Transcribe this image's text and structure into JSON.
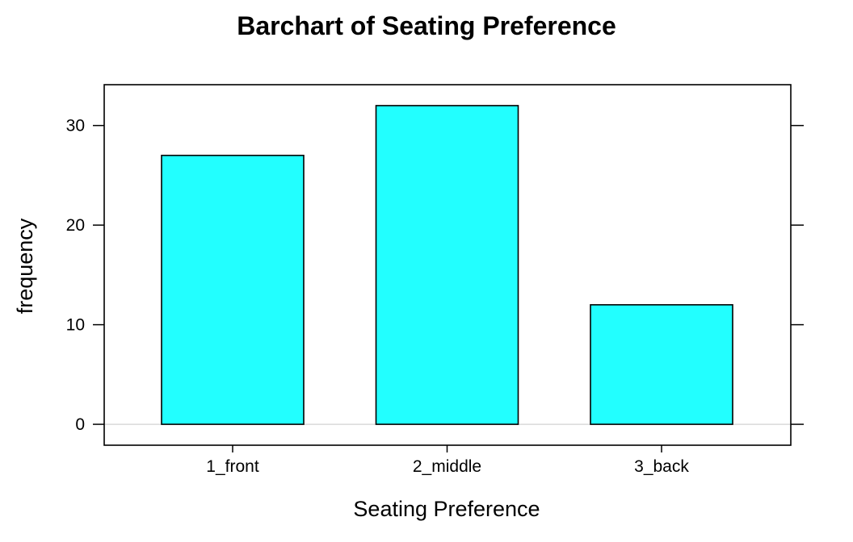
{
  "chart_data": {
    "type": "bar",
    "title": "Barchart of Seating Preference",
    "xlabel": "Seating Preference",
    "ylabel": "frequency",
    "categories": [
      "1_front",
      "2_middle",
      "3_back"
    ],
    "values": [
      27,
      32,
      12
    ],
    "ylim": [
      -2.1,
      34.1
    ],
    "yticks": [
      0,
      10,
      20,
      30
    ],
    "ytick_labels": [
      "0",
      "10",
      "20",
      "30"
    ],
    "grid": false,
    "legend": "none",
    "bar_color": "#22ffff",
    "bar_edge_color": "#000000",
    "reference_line_color": "#d9d9d9"
  }
}
